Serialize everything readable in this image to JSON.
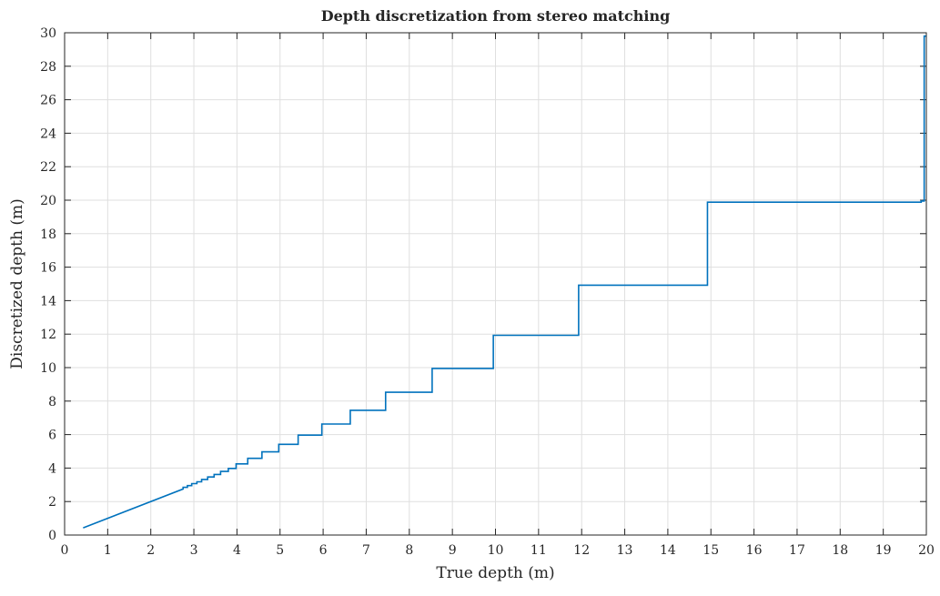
{
  "chart_data": {
    "type": "line",
    "title": "Depth discretization from stereo matching",
    "xlabel": "True depth (m)",
    "ylabel": "Discretized depth (m)",
    "xlim": [
      0,
      20
    ],
    "ylim": [
      0,
      30
    ],
    "x_ticks": [
      "0",
      "1",
      "2",
      "3",
      "4",
      "5",
      "6",
      "7",
      "8",
      "9",
      "10",
      "11",
      "12",
      "13",
      "14",
      "15",
      "16",
      "17",
      "18",
      "19",
      "20"
    ],
    "y_ticks": [
      "0",
      "2",
      "4",
      "6",
      "8",
      "10",
      "12",
      "14",
      "16",
      "18",
      "20",
      "22",
      "24",
      "26",
      "28",
      "30"
    ],
    "grid": true,
    "line_color": "#0072BD",
    "series": [
      {
        "name": "",
        "x": [
          0.43,
          2.75,
          2.75,
          2.85,
          2.85,
          2.95,
          2.95,
          3.07,
          3.07,
          3.18,
          3.18,
          3.32,
          3.32,
          3.47,
          3.47,
          3.62,
          3.62,
          3.8,
          3.8,
          3.98,
          3.98,
          4.25,
          4.25,
          4.58,
          4.58,
          4.97,
          4.97,
          5.42,
          5.42,
          5.97,
          5.97,
          6.63,
          6.63,
          7.45,
          7.45,
          8.53,
          8.53,
          9.95,
          9.95,
          11.93,
          11.93,
          14.92,
          14.92,
          19.88,
          19.88,
          19.95,
          19.95,
          19.99
        ],
        "y": [
          0.43,
          2.75,
          2.85,
          2.85,
          2.95,
          2.95,
          3.07,
          3.07,
          3.18,
          3.18,
          3.32,
          3.32,
          3.47,
          3.47,
          3.62,
          3.62,
          3.8,
          3.8,
          3.98,
          3.98,
          4.25,
          4.25,
          4.58,
          4.58,
          4.97,
          4.97,
          5.42,
          5.42,
          5.97,
          5.97,
          6.63,
          6.63,
          7.45,
          7.45,
          8.53,
          8.53,
          9.95,
          9.95,
          11.93,
          11.93,
          14.92,
          14.92,
          19.88,
          19.88,
          19.95,
          19.95,
          29.8,
          29.8
        ]
      }
    ]
  }
}
